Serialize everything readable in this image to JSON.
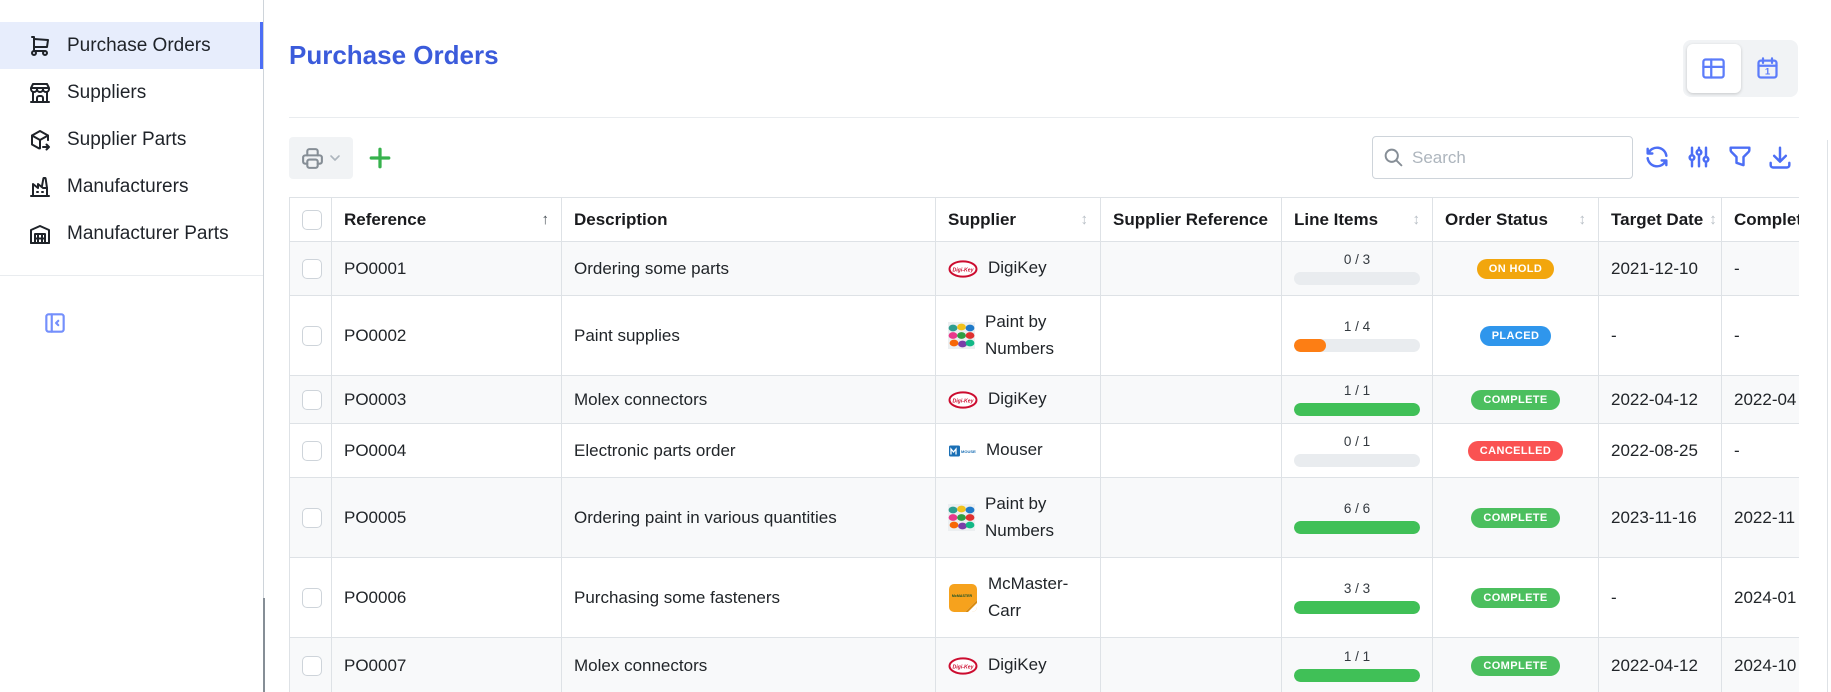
{
  "header": {
    "title": "Purchase Orders"
  },
  "view_toggle": {
    "options": [
      {
        "name": "table-view",
        "icon": "table-icon",
        "active": true
      },
      {
        "name": "calendar-view",
        "icon": "calendar-icon",
        "active": false
      }
    ]
  },
  "sidebar": {
    "items": [
      {
        "label": "Purchase Orders",
        "icon": "shopping-cart-icon",
        "active": true
      },
      {
        "label": "Suppliers",
        "icon": "storefront-icon",
        "active": false
      },
      {
        "label": "Supplier Parts",
        "icon": "package-export-icon",
        "active": false
      },
      {
        "label": "Manufacturers",
        "icon": "factory-icon",
        "active": false
      },
      {
        "label": "Manufacturer Parts",
        "icon": "warehouse-icon",
        "active": false
      }
    ]
  },
  "toolbar": {
    "search": {
      "placeholder": "Search",
      "value": ""
    }
  },
  "table": {
    "columns": [
      {
        "id": "select",
        "label": "",
        "type": "checkbox",
        "sort": null
      },
      {
        "id": "reference",
        "label": "Reference",
        "sort": "asc"
      },
      {
        "id": "description",
        "label": "Description",
        "sort": null
      },
      {
        "id": "supplier",
        "label": "Supplier",
        "sort": "sortable"
      },
      {
        "id": "supplier_reference",
        "label": "Supplier Reference",
        "sort": null
      },
      {
        "id": "line_items",
        "label": "Line Items",
        "sort": "sortable"
      },
      {
        "id": "order_status",
        "label": "Order Status",
        "sort": "sortable"
      },
      {
        "id": "target_date",
        "label": "Target Date",
        "sort": "sortable"
      },
      {
        "id": "completion_date",
        "label": "Completion Date",
        "sort": null
      }
    ],
    "rows": [
      {
        "reference": "PO0001",
        "description": "Ordering some parts",
        "supplier": {
          "name": "DigiKey",
          "logo": "digikey-logo"
        },
        "supplier_reference": "",
        "line_items": {
          "text": "0 / 3",
          "percent": 0,
          "color": "#e9ecef"
        },
        "status": {
          "label": "ON HOLD",
          "color": "#f2a60d"
        },
        "target_date": "2021-12-10",
        "completion_date": "-"
      },
      {
        "reference": "PO0002",
        "description": "Paint supplies",
        "supplier": {
          "name": "Paint by Numbers",
          "logo": "paint-logo"
        },
        "supplier_reference": "",
        "line_items": {
          "text": "1 / 4",
          "percent": 25,
          "color": "#fd7e14"
        },
        "status": {
          "label": "PLACED",
          "color": "#2f96ec"
        },
        "target_date": "-",
        "completion_date": "-"
      },
      {
        "reference": "PO0003",
        "description": "Molex connectors",
        "supplier": {
          "name": "DigiKey",
          "logo": "digikey-logo"
        },
        "supplier_reference": "",
        "line_items": {
          "text": "1 / 1",
          "percent": 100,
          "color": "#40c057"
        },
        "status": {
          "label": "COMPLETE",
          "color": "#4bbf5e"
        },
        "target_date": "2022-04-12",
        "completion_date": "2022-04"
      },
      {
        "reference": "PO0004",
        "description": "Electronic parts order",
        "supplier": {
          "name": "Mouser",
          "logo": "mouser-logo"
        },
        "supplier_reference": "",
        "line_items": {
          "text": "0 / 1",
          "percent": 0,
          "color": "#e9ecef"
        },
        "status": {
          "label": "CANCELLED",
          "color": "#fa5252"
        },
        "target_date": "2022-08-25",
        "completion_date": "-"
      },
      {
        "reference": "PO0005",
        "description": "Ordering paint in various quantities",
        "supplier": {
          "name": "Paint by Numbers",
          "logo": "paint-logo"
        },
        "supplier_reference": "",
        "line_items": {
          "text": "6 / 6",
          "percent": 100,
          "color": "#40c057"
        },
        "status": {
          "label": "COMPLETE",
          "color": "#4bbf5e"
        },
        "target_date": "2023-11-16",
        "completion_date": "2022-11"
      },
      {
        "reference": "PO0006",
        "description": "Purchasing some fasteners",
        "supplier": {
          "name": "McMaster-Carr",
          "logo": "mcmaster-logo"
        },
        "supplier_reference": "",
        "line_items": {
          "text": "3 / 3",
          "percent": 100,
          "color": "#40c057"
        },
        "status": {
          "label": "COMPLETE",
          "color": "#4bbf5e"
        },
        "target_date": "-",
        "completion_date": "2024-01"
      },
      {
        "reference": "PO0007",
        "description": "Molex connectors",
        "supplier": {
          "name": "DigiKey",
          "logo": "digikey-logo"
        },
        "supplier_reference": "",
        "line_items": {
          "text": "1 / 1",
          "percent": 100,
          "color": "#40c057"
        },
        "status": {
          "label": "COMPLETE",
          "color": "#4bbf5e"
        },
        "target_date": "2022-04-12",
        "completion_date": "2024-10"
      }
    ]
  },
  "colors": {
    "accent": "#4c6ef5",
    "title_blue": "#3b5bdb",
    "green": "#40c057",
    "orange": "#fd7e14",
    "progress_track": "#e9ecef",
    "active_item_bg": "#e7edfc"
  }
}
